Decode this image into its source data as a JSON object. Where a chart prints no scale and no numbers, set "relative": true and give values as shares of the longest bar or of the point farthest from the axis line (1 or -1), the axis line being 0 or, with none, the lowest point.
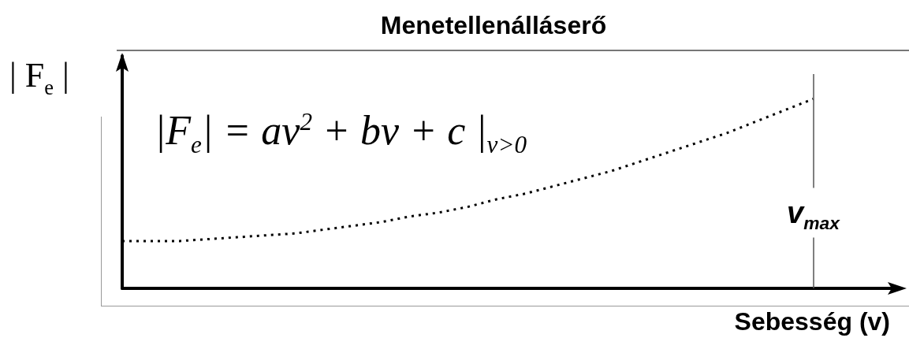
{
  "chart_data": {
    "type": "line",
    "title": "Menetellenálláserő",
    "xlabel": "Sebesség (v)",
    "ylabel": "| F$_{e}$ |",
    "annotations": [
      "|F$_{e}$| = av$^{2}$ + bv + c  |$_{v>0}$",
      "v$_{max}$"
    ],
    "relative": true,
    "categories": [
      null,
      null,
      null,
      null,
      null,
      null,
      null,
      null,
      null,
      null,
      null,
      null,
      null,
      null,
      null,
      null,
      null,
      null,
      null,
      null,
      null,
      null,
      null,
      null,
      null,
      null,
      null,
      null
    ],
    "values": [
      0.25,
      0.25,
      0.25,
      0.26,
      0.27,
      0.28,
      0.29,
      0.31,
      0.33,
      0.35,
      0.38,
      0.4,
      0.43,
      0.47,
      0.5,
      0.54,
      0.58,
      0.62,
      0.67,
      0.72,
      0.77,
      0.82,
      0.88,
      0.94,
      1,
      null,
      null,
      null
    ],
    "color": "#000000",
    "marker": "none",
    "line_style": "dotted"
  }
}
